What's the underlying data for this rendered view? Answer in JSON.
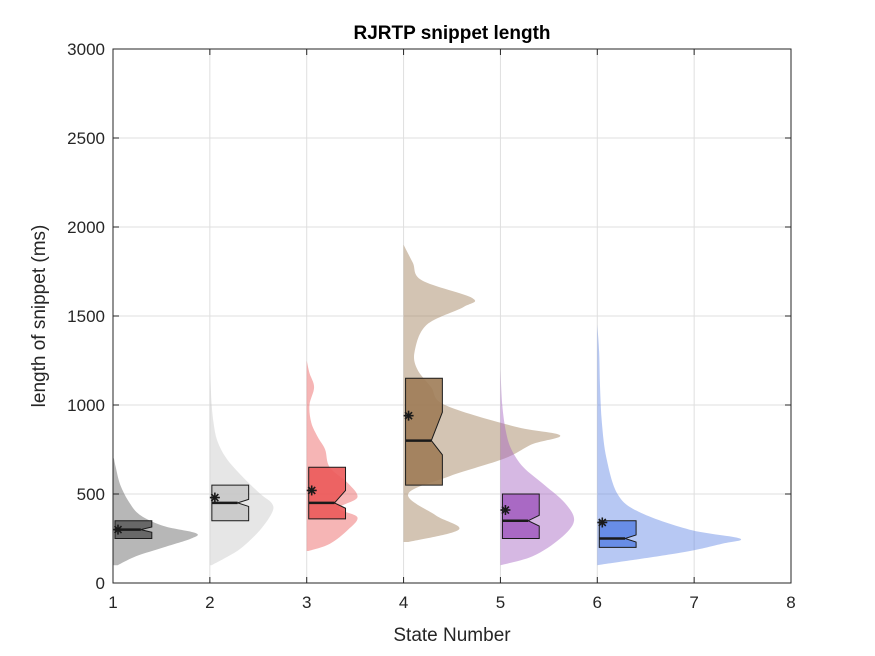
{
  "chart_data": {
    "type": "violin",
    "title": "RJRTP snippet length",
    "xlabel": "State Number",
    "ylabel": "length of snippet (ms)",
    "xlim": [
      1,
      8
    ],
    "ylim": [
      0,
      3000
    ],
    "xticks": [
      "1",
      "2",
      "3",
      "4",
      "5",
      "6",
      "7",
      "8"
    ],
    "yticks": [
      "0",
      "500",
      "1000",
      "1500",
      "2000",
      "2500",
      "3000"
    ],
    "grid": true,
    "box_width_x": 0.38,
    "density_scale_x": 0.95,
    "series": [
      {
        "state": 1,
        "color": "#5f5f5f",
        "density": [
          [
            100,
            0.05
          ],
          [
            150,
            0.25
          ],
          [
            200,
            0.55
          ],
          [
            250,
            0.85
          ],
          [
            280,
            0.9
          ],
          [
            320,
            0.55
          ],
          [
            380,
            0.3
          ],
          [
            450,
            0.18
          ],
          [
            550,
            0.08
          ],
          [
            650,
            0.03
          ],
          [
            700,
            0.01
          ]
        ],
        "q1": 250,
        "median": 300,
        "q3": 350,
        "notch_low": 285,
        "notch_high": 315,
        "mean": 300
      },
      {
        "state": 2,
        "color": "#c8c8c8",
        "density": [
          [
            100,
            0.02
          ],
          [
            150,
            0.2
          ],
          [
            200,
            0.35
          ],
          [
            300,
            0.55
          ],
          [
            400,
            0.68
          ],
          [
            450,
            0.67
          ],
          [
            500,
            0.55
          ],
          [
            600,
            0.35
          ],
          [
            700,
            0.18
          ],
          [
            800,
            0.08
          ],
          [
            900,
            0.04
          ],
          [
            1000,
            0.02
          ],
          [
            1100,
            0.01
          ],
          [
            1230,
            0.0
          ]
        ],
        "q1": 350,
        "median": 450,
        "q3": 550,
        "notch_low": 430,
        "notch_high": 470,
        "mean": 480
      },
      {
        "state": 3,
        "color": "#ec5a5a",
        "density": [
          [
            180,
            0.02
          ],
          [
            220,
            0.25
          ],
          [
            300,
            0.45
          ],
          [
            370,
            0.55
          ],
          [
            420,
            0.35
          ],
          [
            480,
            0.55
          ],
          [
            560,
            0.45
          ],
          [
            650,
            0.25
          ],
          [
            750,
            0.2
          ],
          [
            820,
            0.12
          ],
          [
            900,
            0.05
          ],
          [
            1000,
            0.03
          ],
          [
            1100,
            0.08
          ],
          [
            1180,
            0.03
          ],
          [
            1250,
            0.0
          ]
        ],
        "q1": 360,
        "median": 450,
        "q3": 650,
        "notch_low": 420,
        "notch_high": 520,
        "mean": 520
      },
      {
        "state": 4,
        "color": "#9e7c56",
        "density": [
          [
            230,
            0.05
          ],
          [
            300,
            0.6
          ],
          [
            380,
            0.35
          ],
          [
            500,
            0.05
          ],
          [
            600,
            0.5
          ],
          [
            700,
            1.1
          ],
          [
            780,
            1.4
          ],
          [
            830,
            1.7
          ],
          [
            880,
            1.2
          ],
          [
            1000,
            0.45
          ],
          [
            1100,
            0.3
          ],
          [
            1200,
            0.15
          ],
          [
            1300,
            0.12
          ],
          [
            1450,
            0.25
          ],
          [
            1550,
            0.65
          ],
          [
            1600,
            0.75
          ],
          [
            1700,
            0.2
          ],
          [
            1800,
            0.1
          ],
          [
            1900,
            0.0
          ]
        ],
        "q1": 550,
        "median": 800,
        "q3": 1150,
        "notch_low": 720,
        "notch_high": 960,
        "mean": 940
      },
      {
        "state": 5,
        "color": "#a461c0",
        "density": [
          [
            100,
            0.0
          ],
          [
            150,
            0.35
          ],
          [
            250,
            0.65
          ],
          [
            350,
            0.8
          ],
          [
            450,
            0.7
          ],
          [
            550,
            0.48
          ],
          [
            650,
            0.25
          ],
          [
            750,
            0.12
          ],
          [
            850,
            0.06
          ],
          [
            1000,
            0.02
          ],
          [
            1200,
            0.0
          ]
        ],
        "q1": 250,
        "median": 350,
        "q3": 500,
        "notch_low": 320,
        "notch_high": 380,
        "mean": 410
      },
      {
        "state": 6,
        "color": "#5f86e4",
        "density": [
          [
            100,
            0.0
          ],
          [
            170,
            0.9
          ],
          [
            220,
            1.35
          ],
          [
            250,
            1.55
          ],
          [
            300,
            1.0
          ],
          [
            400,
            0.45
          ],
          [
            500,
            0.22
          ],
          [
            700,
            0.1
          ],
          [
            900,
            0.05
          ],
          [
            1100,
            0.03
          ],
          [
            1300,
            0.02
          ],
          [
            1450,
            0.0
          ]
        ],
        "q1": 200,
        "median": 250,
        "q3": 350,
        "notch_low": 230,
        "notch_high": 270,
        "mean": 340
      }
    ]
  }
}
